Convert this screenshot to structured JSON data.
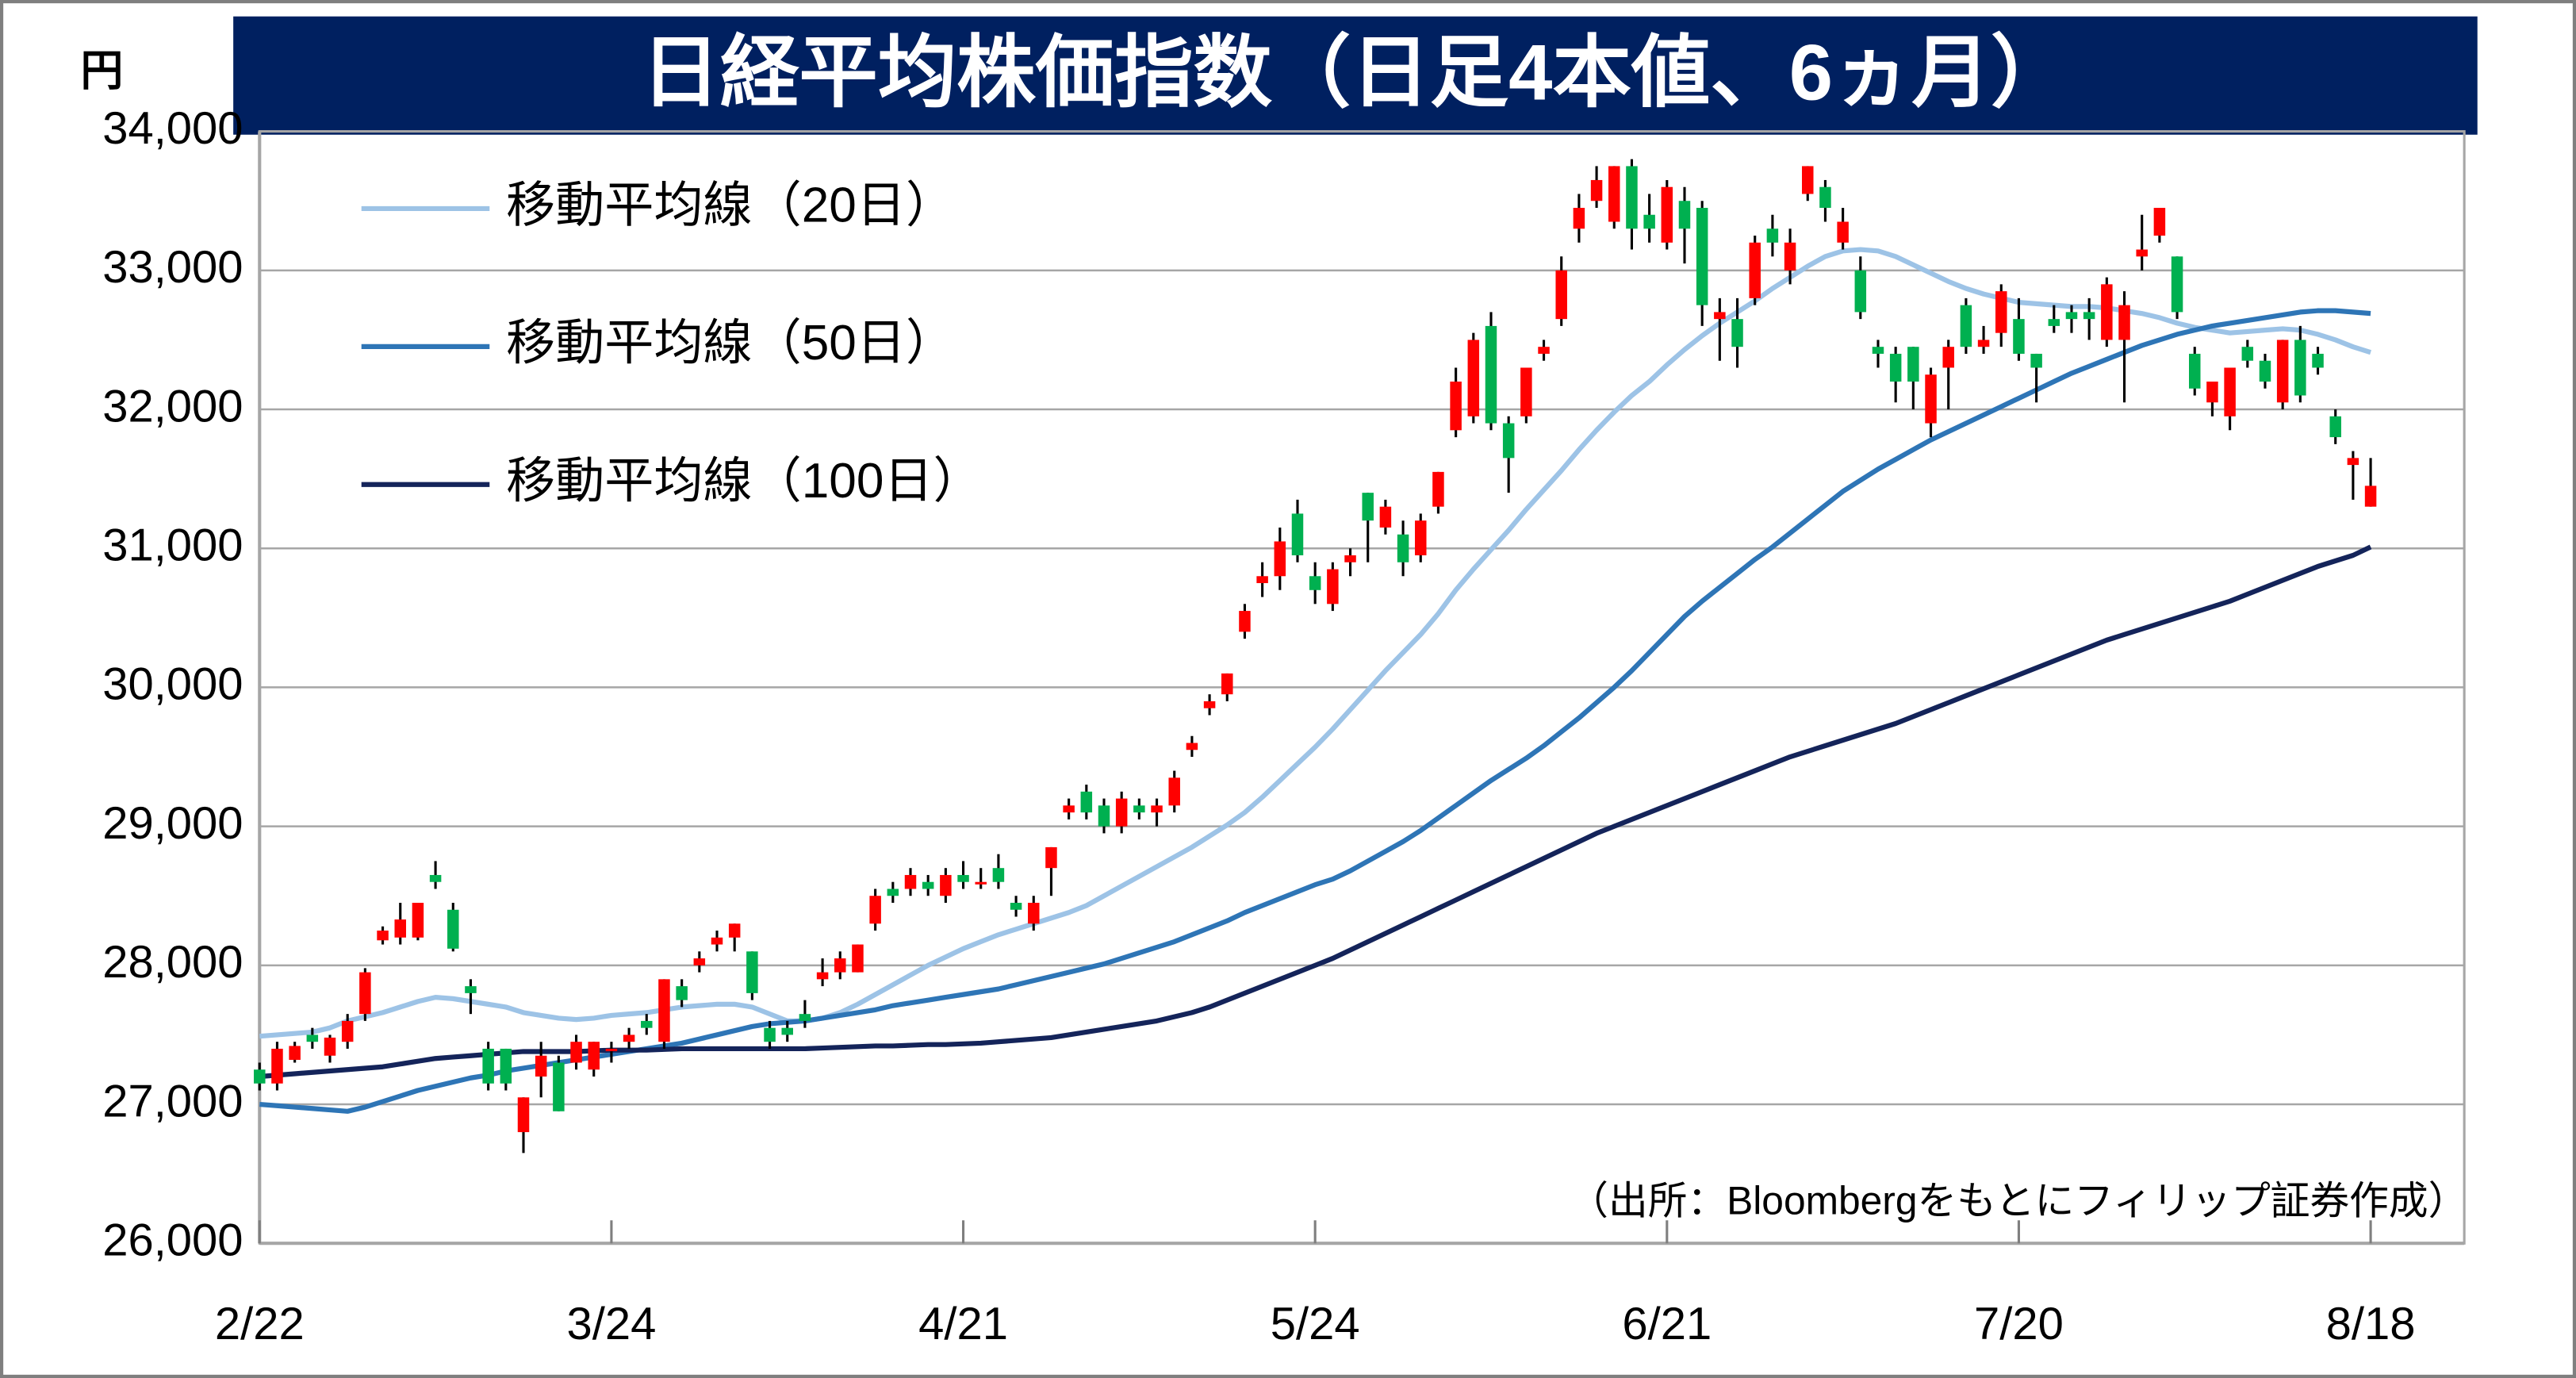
{
  "chart_data": {
    "type": "candlestick",
    "title": "日経平均株価指数（日足4本値、6ヵ月）",
    "y_unit": "円",
    "note": "（出所：Bloombergをもとにフィリップ証券作成）",
    "up_color": "#ff0000",
    "down_color": "#00b050",
    "grid": true,
    "ylim": [
      26000,
      34000
    ],
    "yticks": [
      {
        "value": 26000,
        "label": "26,000"
      },
      {
        "value": 27000,
        "label": "27,000"
      },
      {
        "value": 28000,
        "label": "28,000"
      },
      {
        "value": 29000,
        "label": "29,000"
      },
      {
        "value": 30000,
        "label": "30,000"
      },
      {
        "value": 31000,
        "label": "31,000"
      },
      {
        "value": 32000,
        "label": "32,000"
      },
      {
        "value": 33000,
        "label": "33,000"
      },
      {
        "value": 34000,
        "label": "34,000"
      }
    ],
    "categories": [
      "2/22",
      null,
      null,
      null,
      null,
      null,
      null,
      null,
      null,
      null,
      null,
      null,
      null,
      null,
      null,
      null,
      null,
      null,
      null,
      null,
      "3/24",
      null,
      null,
      null,
      null,
      null,
      null,
      null,
      null,
      null,
      null,
      null,
      null,
      null,
      null,
      null,
      null,
      null,
      null,
      null,
      "4/21",
      null,
      null,
      null,
      null,
      null,
      null,
      null,
      null,
      null,
      null,
      null,
      null,
      null,
      null,
      null,
      null,
      null,
      null,
      null,
      "5/24",
      null,
      null,
      null,
      null,
      null,
      null,
      null,
      null,
      null,
      null,
      null,
      null,
      null,
      null,
      null,
      null,
      null,
      null,
      null,
      "6/21",
      null,
      null,
      null,
      null,
      null,
      null,
      null,
      null,
      null,
      null,
      null,
      null,
      null,
      null,
      null,
      null,
      null,
      null,
      null,
      "7/20",
      null,
      null,
      null,
      null,
      null,
      null,
      null,
      null,
      null,
      null,
      null,
      null,
      null,
      null,
      null,
      null,
      null,
      null,
      null,
      "8/18"
    ],
    "candles": {
      "open": [
        27250,
        27150,
        27320,
        27500,
        27350,
        27450,
        27650,
        28180,
        28200,
        28200,
        28650,
        28400,
        27850,
        27400,
        27400,
        26800,
        27200,
        27300,
        27300,
        27250,
        27400,
        27450,
        27600,
        27450,
        27850,
        28000,
        28150,
        28200,
        28100,
        27550,
        27550,
        27650,
        27900,
        27950,
        27950,
        28300,
        28550,
        28550,
        28600,
        28500,
        28650,
        28600,
        28700,
        28450,
        28300,
        28700,
        29100,
        29250,
        29150,
        29000,
        29150,
        29100,
        29150,
        29550,
        29850,
        29950,
        30400,
        30750,
        30800,
        31250,
        30800,
        30600,
        30900,
        31400,
        31150,
        31100,
        30950,
        31300,
        31850,
        31950,
        32600,
        31900,
        31950,
        32400,
        32650,
        33300,
        33500,
        33350,
        33750,
        33400,
        33200,
        33500,
        33450,
        32650,
        32650,
        32800,
        33300,
        33000,
        33550,
        33600,
        33200,
        33000,
        32450,
        32400,
        32450,
        31900,
        32300,
        32750,
        32450,
        32550,
        32650,
        32400,
        32650,
        32700,
        32700,
        32500,
        32500,
        33100,
        33250,
        33100,
        32400,
        32050,
        31950,
        32450,
        32350,
        32050,
        32500,
        32400,
        31950,
        31600,
        31300
      ],
      "high": [
        27300,
        27450,
        27450,
        27550,
        27500,
        27650,
        27980,
        28280,
        28450,
        28450,
        28750,
        28450,
        27900,
        27450,
        27400,
        27050,
        27450,
        27350,
        27500,
        27450,
        27450,
        27550,
        27650,
        27900,
        27900,
        28100,
        28250,
        28300,
        28100,
        27600,
        27600,
        27750,
        28050,
        28100,
        28150,
        28550,
        28600,
        28700,
        28650,
        28700,
        28750,
        28700,
        28800,
        28500,
        28500,
        28850,
        29200,
        29300,
        29200,
        29250,
        29200,
        29200,
        29400,
        29650,
        29950,
        30100,
        30600,
        30900,
        31150,
        31350,
        30900,
        30900,
        31000,
        31400,
        31350,
        31200,
        31250,
        31550,
        32300,
        32550,
        32700,
        31950,
        32300,
        32500,
        33100,
        33550,
        33750,
        33750,
        33800,
        33550,
        33650,
        33600,
        33500,
        32800,
        32800,
        33250,
        33400,
        33300,
        33750,
        33650,
        33450,
        33100,
        32500,
        32450,
        32450,
        32300,
        32500,
        32800,
        32600,
        32900,
        32800,
        32400,
        32750,
        32750,
        32800,
        32950,
        32850,
        33400,
        33450,
        33100,
        32450,
        32200,
        32300,
        32500,
        32400,
        32500,
        32600,
        32450,
        32000,
        31700,
        31650
      ],
      "low": [
        27100,
        27100,
        27300,
        27400,
        27300,
        27400,
        27600,
        28150,
        28150,
        28180,
        28550,
        28100,
        27650,
        27100,
        27100,
        26650,
        27050,
        26950,
        27250,
        27200,
        27300,
        27400,
        27500,
        27400,
        27700,
        27950,
        28100,
        28100,
        27750,
        27400,
        27450,
        27550,
        27850,
        27900,
        27950,
        28250,
        28450,
        28500,
        28500,
        28450,
        28550,
        28550,
        28550,
        28350,
        28250,
        28500,
        29050,
        29050,
        28950,
        28950,
        29050,
        29000,
        29100,
        29500,
        29800,
        29900,
        30350,
        30650,
        30700,
        30900,
        30600,
        30550,
        30800,
        30900,
        31100,
        30800,
        30900,
        31250,
        31800,
        31900,
        31850,
        31400,
        31900,
        32350,
        32600,
        33200,
        33450,
        33300,
        33150,
        33200,
        33150,
        33050,
        32600,
        32350,
        32300,
        32750,
        33100,
        32900,
        33500,
        33350,
        33150,
        32650,
        32300,
        32050,
        32000,
        31800,
        32000,
        32400,
        32400,
        32450,
        32350,
        32050,
        32550,
        32550,
        32500,
        32450,
        32050,
        33000,
        33200,
        32650,
        32100,
        31950,
        31850,
        32300,
        32150,
        32000,
        32050,
        32250,
        31750,
        31350,
        31300
      ],
      "close": [
        27150,
        27400,
        27420,
        27450,
        27480,
        27600,
        27950,
        28250,
        28330,
        28450,
        28600,
        28120,
        27800,
        27150,
        27150,
        27050,
        27350,
        26950,
        27450,
        27450,
        27400,
        27500,
        27550,
        27900,
        27750,
        28050,
        28200,
        28300,
        27800,
        27450,
        27500,
        27600,
        27950,
        28050,
        28150,
        28500,
        28500,
        28650,
        28550,
        28650,
        28600,
        28600,
        28600,
        28400,
        28450,
        28850,
        29150,
        29100,
        29000,
        29200,
        29100,
        29150,
        29350,
        29600,
        29900,
        30100,
        30550,
        30800,
        31050,
        30950,
        30700,
        30850,
        30950,
        31200,
        31300,
        30900,
        31200,
        31550,
        32200,
        32500,
        31900,
        31650,
        32300,
        32450,
        33000,
        33450,
        33650,
        33750,
        33300,
        33300,
        33600,
        33300,
        32750,
        32700,
        32450,
        33200,
        33200,
        33200,
        33750,
        33450,
        33350,
        32700,
        32400,
        32200,
        32200,
        32250,
        32450,
        32450,
        32500,
        32850,
        32400,
        32300,
        32600,
        32650,
        32650,
        32900,
        32750,
        33150,
        33450,
        32700,
        32150,
        32200,
        32300,
        32350,
        32200,
        32500,
        32100,
        32300,
        31800,
        31650,
        31450
      ]
    },
    "series": [
      {
        "name": "移動平均線（20日）",
        "color": "#9dc3e6",
        "values": [
          27490,
          27500,
          27510,
          27520,
          27550,
          27600,
          27630,
          27660,
          27700,
          27740,
          27770,
          27760,
          27740,
          27720,
          27700,
          27660,
          27640,
          27620,
          27610,
          27620,
          27640,
          27650,
          27660,
          27680,
          27700,
          27710,
          27720,
          27720,
          27700,
          27650,
          27600,
          27600,
          27620,
          27660,
          27720,
          27790,
          27860,
          27930,
          28000,
          28060,
          28120,
          28170,
          28220,
          28260,
          28300,
          28340,
          28380,
          28430,
          28500,
          28570,
          28640,
          28710,
          28780,
          28850,
          28930,
          29010,
          29100,
          29210,
          29330,
          29450,
          29570,
          29700,
          29840,
          29980,
          30120,
          30250,
          30380,
          30530,
          30700,
          30850,
          30990,
          31130,
          31280,
          31420,
          31560,
          31710,
          31850,
          31980,
          32100,
          32200,
          32320,
          32430,
          32530,
          32620,
          32700,
          32780,
          32870,
          32950,
          33030,
          33100,
          33140,
          33150,
          33140,
          33100,
          33040,
          32980,
          32920,
          32870,
          32830,
          32800,
          32770,
          32760,
          32750,
          32740,
          32740,
          32730,
          32710,
          32690,
          32660,
          32620,
          32590,
          32570,
          32550,
          32560,
          32570,
          32580,
          32570,
          32540,
          32500,
          32450,
          32410
        ]
      },
      {
        "name": "移動平均線（50日）",
        "color": "#2e75b6",
        "values": [
          27000,
          26990,
          26980,
          26970,
          26960,
          26950,
          26980,
          27020,
          27060,
          27100,
          27130,
          27160,
          27190,
          27210,
          27240,
          27260,
          27280,
          27300,
          27320,
          27340,
          27360,
          27380,
          27400,
          27420,
          27440,
          27470,
          27500,
          27530,
          27560,
          27580,
          27590,
          27600,
          27620,
          27640,
          27660,
          27680,
          27710,
          27730,
          27750,
          27770,
          27790,
          27810,
          27830,
          27860,
          27890,
          27920,
          27950,
          27980,
          28010,
          28050,
          28090,
          28130,
          28170,
          28220,
          28270,
          28320,
          28380,
          28430,
          28480,
          28530,
          28580,
          28620,
          28680,
          28750,
          28820,
          28890,
          28970,
          29060,
          29150,
          29240,
          29330,
          29410,
          29490,
          29580,
          29680,
          29780,
          29890,
          30000,
          30120,
          30250,
          30380,
          30510,
          30620,
          30720,
          30820,
          30920,
          31010,
          31110,
          31210,
          31310,
          31410,
          31490,
          31570,
          31640,
          31710,
          31780,
          31840,
          31900,
          31960,
          32020,
          32080,
          32140,
          32200,
          32260,
          32310,
          32360,
          32410,
          32460,
          32500,
          32540,
          32570,
          32600,
          32620,
          32640,
          32660,
          32680,
          32700,
          32710,
          32710,
          32700,
          32690
        ]
      },
      {
        "name": "移動平均線（100日）",
        "color": "#14245a",
        "values": [
          27200,
          27210,
          27220,
          27230,
          27240,
          27250,
          27260,
          27270,
          27290,
          27310,
          27330,
          27340,
          27350,
          27360,
          27370,
          27380,
          27380,
          27380,
          27380,
          27385,
          27390,
          27390,
          27390,
          27395,
          27400,
          27400,
          27400,
          27400,
          27400,
          27400,
          27400,
          27400,
          27405,
          27410,
          27415,
          27420,
          27420,
          27425,
          27430,
          27430,
          27435,
          27440,
          27450,
          27460,
          27470,
          27480,
          27500,
          27520,
          27540,
          27560,
          27580,
          27600,
          27630,
          27660,
          27700,
          27750,
          27800,
          27850,
          27900,
          27950,
          28000,
          28050,
          28110,
          28170,
          28230,
          28290,
          28350,
          28410,
          28470,
          28530,
          28590,
          28650,
          28710,
          28770,
          28830,
          28890,
          28950,
          29000,
          29050,
          29100,
          29150,
          29200,
          29250,
          29300,
          29350,
          29400,
          29450,
          29500,
          29540,
          29580,
          29620,
          29660,
          29700,
          29740,
          29790,
          29840,
          29890,
          29940,
          29990,
          30040,
          30090,
          30140,
          30190,
          30240,
          30290,
          30340,
          30380,
          30420,
          30460,
          30500,
          30540,
          30580,
          30620,
          30670,
          30720,
          30770,
          30820,
          30870,
          30910,
          30950,
          31010
        ]
      }
    ]
  }
}
